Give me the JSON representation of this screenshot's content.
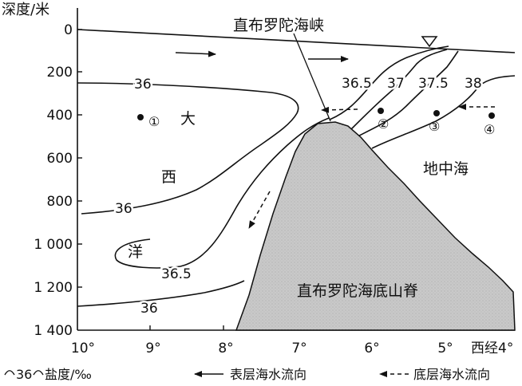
{
  "axes": {
    "y_title": "深度/米",
    "y_ticks": [
      "0",
      "200",
      "400",
      "600",
      "800",
      "1 000",
      "1 200",
      "1 400"
    ],
    "x_ticks": [
      "10°",
      "9°",
      "8°",
      "7°",
      "6°",
      "5°"
    ],
    "x_last": "西经4°"
  },
  "labels": {
    "strait": "直布罗陀海峡",
    "ridge": "直布罗陀海底山脊",
    "atlantic": [
      "大",
      "西",
      "洋"
    ],
    "med": "地中海",
    "points": [
      "①",
      "②",
      "③",
      "④"
    ]
  },
  "isohalines": {
    "left_36_top": "36",
    "left_36_mid": "36",
    "left_36_5": "36.5",
    "left_36_bottom": "36",
    "right": [
      "36.5",
      "37",
      "37.5",
      "38"
    ]
  },
  "legend": {
    "isohaline": "36",
    "isohaline_text": "盐度/‰",
    "surface": "表层海水流向",
    "bottom": "底层海水流向"
  },
  "colors": {
    "ridge_fill": "#c9c9c9",
    "ink": "#111111"
  }
}
